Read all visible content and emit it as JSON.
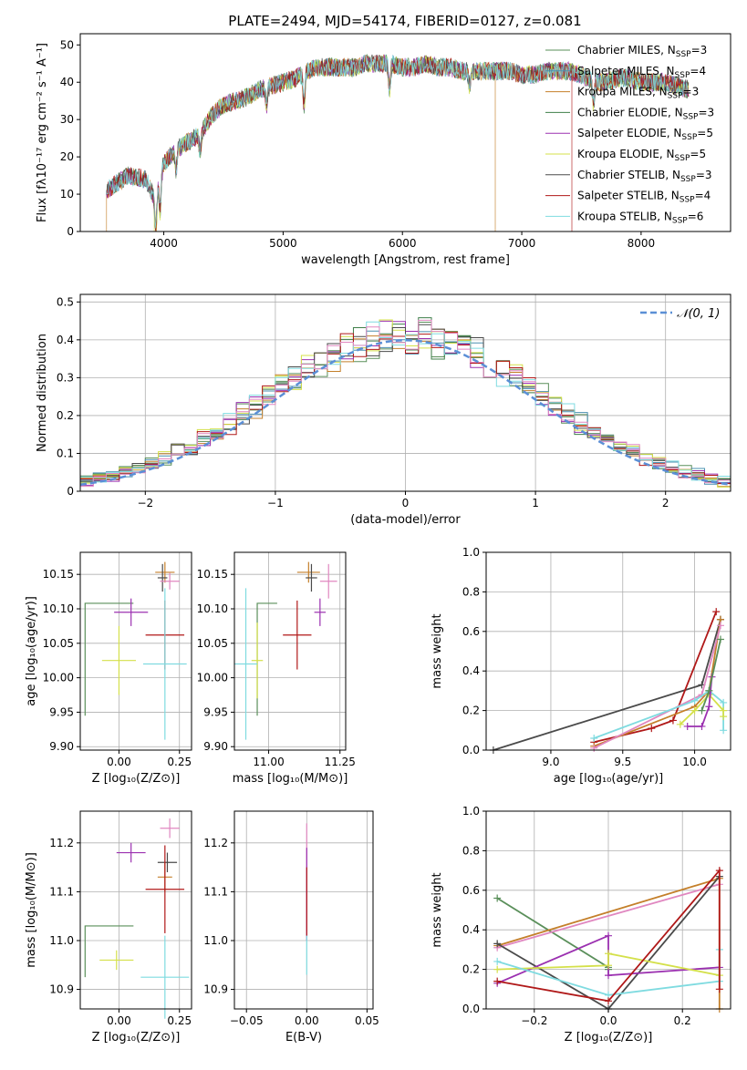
{
  "chart_data": [
    {
      "id": "spectrum",
      "type": "line",
      "title": "PLATE=2494, MJD=54174, FIBERID=0127, z=0.081",
      "xlabel": "wavelength [Angstrom, rest frame]",
      "ylabel": "Flux [fλ10⁻¹⁷ erg cm⁻² s⁻¹ A⁻¹]",
      "xlim": [
        3300,
        8750
      ],
      "ylim": [
        0,
        53
      ],
      "x_ticks": [
        4000,
        5000,
        6000,
        7000,
        8000
      ],
      "y_ticks": [
        0,
        10,
        20,
        30,
        40,
        50
      ],
      "legend_position": "top-right",
      "series": [
        {
          "name": "Chabrier MILES, N",
          "sub": "SSP",
          "suffix": "=3",
          "color": "#5a8f5a"
        },
        {
          "name": "Salpeter MILES, N",
          "sub": "SSP",
          "suffix": "=4",
          "color": "#4a8fb0"
        },
        {
          "name": "Kroupa MILES, N",
          "sub": "SSP",
          "suffix": "=3",
          "color": "#c47f2a"
        },
        {
          "name": "Chabrier ELODIE, N",
          "sub": "SSP",
          "suffix": "=3",
          "color": "#3f7f4a"
        },
        {
          "name": "Salpeter ELODIE, N",
          "sub": "SSP",
          "suffix": "=5",
          "color": "#9b30b0"
        },
        {
          "name": "Kroupa ELODIE, N",
          "sub": "SSP",
          "suffix": "=5",
          "color": "#d4e04a"
        },
        {
          "name": "Chabrier STELIB, N",
          "sub": "SSP",
          "suffix": "=3",
          "color": "#4a4a4a"
        },
        {
          "name": "Salpeter STELIB, N",
          "sub": "SSP",
          "suffix": "=4",
          "color": "#b01818"
        },
        {
          "name": "Kroupa STELIB, N",
          "sub": "SSP",
          "suffix": "=6",
          "color": "#7fdbe0"
        }
      ],
      "spectrum_continuum": [
        [
          3520,
          11
        ],
        [
          3700,
          15
        ],
        [
          3850,
          14
        ],
        [
          3920,
          9
        ],
        [
          4000,
          18
        ],
        [
          4100,
          22
        ],
        [
          4200,
          24
        ],
        [
          4300,
          26
        ],
        [
          4400,
          31
        ],
        [
          4500,
          34
        ],
        [
          4600,
          35
        ],
        [
          4700,
          36
        ],
        [
          4800,
          38
        ],
        [
          4900,
          39
        ],
        [
          5000,
          40
        ],
        [
          5100,
          41
        ],
        [
          5200,
          43
        ],
        [
          5300,
          44
        ],
        [
          5400,
          44
        ],
        [
          5500,
          44
        ],
        [
          5600,
          44
        ],
        [
          5700,
          45
        ],
        [
          5800,
          45
        ],
        [
          5900,
          45
        ],
        [
          6000,
          44
        ],
        [
          6100,
          44
        ],
        [
          6200,
          45
        ],
        [
          6300,
          44
        ],
        [
          6400,
          44
        ],
        [
          6500,
          43
        ],
        [
          6600,
          43
        ],
        [
          6700,
          43
        ],
        [
          6800,
          43
        ],
        [
          6900,
          43
        ],
        [
          7000,
          42
        ],
        [
          7100,
          42
        ],
        [
          7200,
          43
        ],
        [
          7300,
          43
        ],
        [
          7400,
          43
        ],
        [
          7500,
          42
        ],
        [
          7600,
          40
        ],
        [
          7700,
          40
        ],
        [
          7800,
          41
        ],
        [
          7900,
          41
        ],
        [
          8000,
          40
        ],
        [
          8100,
          40
        ],
        [
          8200,
          40
        ],
        [
          8300,
          39
        ],
        [
          8400,
          38
        ]
      ],
      "dips": [
        [
          3934,
          10
        ],
        [
          3969,
          9
        ],
        [
          4102,
          6
        ],
        [
          4304,
          5
        ],
        [
          4861,
          5
        ],
        [
          5175,
          9
        ],
        [
          5892,
          7
        ],
        [
          6563,
          4
        ],
        [
          7600,
          6
        ]
      ]
    },
    {
      "id": "residuals",
      "type": "line",
      "xlabel": "(data-model)/error",
      "ylabel": "Normed distribution",
      "xlim": [
        -2.5,
        2.5
      ],
      "ylim": [
        0,
        0.52
      ],
      "x_ticks": [
        -2,
        -1,
        0,
        1,
        2
      ],
      "y_ticks": [
        0.0,
        0.1,
        0.2,
        0.3,
        0.4,
        0.5
      ],
      "reference_curve": {
        "name": "𝒩(0, 1)",
        "color": "#5b8fd6",
        "mean": 0,
        "sigma": 1
      },
      "legend_position": "top-right",
      "bins": {
        "start": -2.5,
        "width": 0.1,
        "count": 50
      },
      "series_colors": [
        "#5a8f5a",
        "#4a8fb0",
        "#c47f2a",
        "#3f7f4a",
        "#9b30b0",
        "#d4e04a",
        "#4a4a4a",
        "#b01818",
        "#7fdbe0",
        "#e087c0"
      ]
    },
    {
      "id": "age_vs_Z",
      "type": "scatter",
      "xlabel": "Z [log₁₀(Z/Z⊙)]",
      "ylabel": "age  [log₁₀(age/yr)]",
      "xlim": [
        -0.16,
        0.3
      ],
      "ylim": [
        9.895,
        10.182
      ],
      "x_ticks": [
        0.0,
        0.25
      ],
      "x_tick_labels": [
        "0.00",
        "0.25"
      ],
      "y_ticks": [
        9.9,
        9.95,
        10.0,
        10.05,
        10.1,
        10.15
      ],
      "y_tick_labels": [
        "9.90",
        "9.95",
        "10.00",
        "10.05",
        "10.10",
        "10.15"
      ],
      "points": [
        {
          "x": 0.19,
          "y": 10.153,
          "xerr": 0.04,
          "yerr": 0.015,
          "color": "#c47f2a"
        },
        {
          "x": 0.18,
          "y": 10.145,
          "xerr": 0.02,
          "yerr": 0.02,
          "color": "#4a4a4a"
        },
        {
          "x": 0.21,
          "y": 10.14,
          "xerr": 0.04,
          "yerr": 0.012,
          "color": "#e087c0"
        },
        {
          "x": 0.05,
          "y": 10.095,
          "xerr": 0.07,
          "yerr": 0.02,
          "color": "#9b30b0"
        },
        {
          "x": 0.19,
          "y": 10.062,
          "xerr": 0.08,
          "yerr": 0.05,
          "color": "#b01818"
        },
        {
          "x": 0.0,
          "y": 10.025,
          "xerr": 0.07,
          "yerr": 0.05,
          "color": "#d4e04a"
        },
        {
          "x": 0.19,
          "y": 10.02,
          "xerr": 0.09,
          "yerr": 0.11,
          "color": "#7fdbe0"
        }
      ],
      "steps": [
        {
          "x0": -0.14,
          "x1": 0.06,
          "y0": 9.945,
          "y1": 10.108,
          "color": "#5a8f5a"
        }
      ]
    },
    {
      "id": "age_vs_mass",
      "type": "scatter",
      "xlabel": "mass [log₁₀(M/M⊙)]",
      "ylabel": "",
      "xlim": [
        10.88,
        11.27
      ],
      "ylim": [
        9.895,
        10.182
      ],
      "x_ticks": [
        11.0,
        11.25
      ],
      "x_tick_labels": [
        "11.00",
        "11.25"
      ],
      "y_ticks": [
        9.9,
        9.95,
        10.0,
        10.05,
        10.1,
        10.15
      ],
      "y_tick_labels": [
        "9.90",
        "9.95",
        "10.00",
        "10.05",
        "10.10",
        "10.15"
      ],
      "points": [
        {
          "x": 11.14,
          "y": 10.153,
          "xerr": 0.04,
          "yerr": 0.015,
          "color": "#c47f2a"
        },
        {
          "x": 11.15,
          "y": 10.145,
          "xerr": 0.02,
          "yerr": 0.02,
          "color": "#4a4a4a"
        },
        {
          "x": 11.21,
          "y": 10.14,
          "xerr": 0.03,
          "yerr": 0.025,
          "color": "#e087c0"
        },
        {
          "x": 11.18,
          "y": 10.095,
          "xerr": 0.02,
          "yerr": 0.02,
          "color": "#9b30b0"
        },
        {
          "x": 11.1,
          "y": 10.062,
          "xerr": 0.05,
          "yerr": 0.05,
          "color": "#b01818"
        },
        {
          "x": 10.96,
          "y": 10.025,
          "xerr": 0.02,
          "yerr": 0.055,
          "color": "#d4e04a"
        },
        {
          "x": 10.92,
          "y": 10.02,
          "xerr": 0.04,
          "yerr": 0.11,
          "color": "#7fdbe0"
        }
      ],
      "steps": [
        {
          "x0": 10.96,
          "x1": 11.03,
          "y0": 9.945,
          "y1": 10.108,
          "color": "#5a8f5a"
        }
      ]
    },
    {
      "id": "massweight_vs_age",
      "type": "line",
      "xlabel": "age  [log₁₀(age/yr)]",
      "ylabel": "mass weight",
      "xlim": [
        8.55,
        10.25
      ],
      "ylim": [
        0,
        1.0
      ],
      "x_ticks": [
        9.0,
        9.5,
        10.0
      ],
      "x_tick_labels": [
        "9.0",
        "9.5",
        "10.0"
      ],
      "y_ticks": [
        0.0,
        0.2,
        0.4,
        0.6,
        0.8,
        1.0
      ],
      "y_tick_labels": [
        "0.0",
        "0.2",
        "0.4",
        "0.6",
        "0.8",
        "1.0"
      ],
      "series": [
        {
          "color": "#4a4a4a",
          "points": [
            [
              8.6,
              0.0
            ],
            [
              10.05,
              0.33
            ],
            [
              10.18,
              0.66
            ],
            [
              10.18,
              0.66
            ]
          ]
        },
        {
          "color": "#b01818",
          "points": [
            [
              9.3,
              0.04
            ],
            [
              9.7,
              0.11
            ],
            [
              9.85,
              0.15
            ],
            [
              10.15,
              0.7
            ]
          ]
        },
        {
          "color": "#c47f2a",
          "points": [
            [
              9.3,
              0.02
            ],
            [
              10.0,
              0.22
            ],
            [
              10.1,
              0.3
            ],
            [
              10.18,
              0.66
            ]
          ]
        },
        {
          "color": "#e087c0",
          "points": [
            [
              9.3,
              0.01
            ],
            [
              10.05,
              0.28
            ],
            [
              10.18,
              0.63
            ]
          ]
        },
        {
          "color": "#7fdbe0",
          "points": [
            [
              9.3,
              0.06
            ],
            [
              10.0,
              0.25
            ],
            [
              10.1,
              0.3
            ],
            [
              10.2,
              0.24
            ],
            [
              10.2,
              0.1
            ]
          ]
        },
        {
          "color": "#d4e04a",
          "points": [
            [
              9.9,
              0.13
            ],
            [
              10.0,
              0.2
            ],
            [
              10.1,
              0.28
            ],
            [
              10.2,
              0.2
            ],
            [
              10.2,
              0.17
            ]
          ]
        },
        {
          "color": "#9b30b0",
          "points": [
            [
              9.95,
              0.12
            ],
            [
              10.05,
              0.12
            ],
            [
              10.1,
              0.22
            ],
            [
              10.12,
              0.37
            ]
          ]
        },
        {
          "color": "#5a8f5a",
          "points": [
            [
              10.05,
              0.2
            ],
            [
              10.1,
              0.3
            ],
            [
              10.18,
              0.56
            ]
          ]
        }
      ]
    },
    {
      "id": "mass_vs_Z",
      "type": "scatter",
      "xlabel": "Z [log₁₀(Z/Z⊙)]",
      "ylabel": "mass [log₁₀(M/M⊙)]",
      "xlim": [
        -0.16,
        0.3
      ],
      "ylim": [
        10.86,
        11.265
      ],
      "x_ticks": [
        0.0,
        0.25
      ],
      "x_tick_labels": [
        "0.00",
        "0.25"
      ],
      "y_ticks": [
        10.9,
        11.0,
        11.1,
        11.2
      ],
      "y_tick_labels": [
        "10.9",
        "11.0",
        "11.1",
        "11.2"
      ],
      "points": [
        {
          "x": 0.21,
          "y": 11.23,
          "xerr": 0.04,
          "yerr": 0.02,
          "color": "#e087c0"
        },
        {
          "x": 0.05,
          "y": 11.18,
          "xerr": 0.06,
          "yerr": 0.02,
          "color": "#9b30b0"
        },
        {
          "x": 0.2,
          "y": 11.16,
          "xerr": 0.04,
          "yerr": 0.02,
          "color": "#4a4a4a"
        },
        {
          "x": 0.19,
          "y": 11.13,
          "xerr": 0.03,
          "yerr": 0.03,
          "color": "#c47f2a"
        },
        {
          "x": 0.19,
          "y": 11.105,
          "xerr": 0.08,
          "yerr": 0.09,
          "color": "#b01818"
        },
        {
          "x": -0.01,
          "y": 10.96,
          "xerr": 0.07,
          "yerr": 0.02,
          "color": "#d4e04a"
        },
        {
          "x": 0.19,
          "y": 10.925,
          "xerr": 0.1,
          "yerr": 0.085,
          "color": "#7fdbe0"
        }
      ],
      "steps": [
        {
          "x0": -0.14,
          "x1": 0.06,
          "y0": 10.925,
          "y1": 11.03,
          "color": "#5a8f5a"
        }
      ]
    },
    {
      "id": "mass_vs_ebv",
      "type": "scatter",
      "xlabel": "E(B-V)",
      "ylabel": "",
      "xlim": [
        -0.06,
        0.055
      ],
      "ylim": [
        10.86,
        11.265
      ],
      "x_ticks": [
        -0.05,
        0.0,
        0.05
      ],
      "x_tick_labels": [
        "−0.05",
        "0.00",
        "0.05"
      ],
      "y_ticks": [
        10.9,
        11.0,
        11.1,
        11.2
      ],
      "y_tick_labels": [
        "10.9",
        "11.0",
        "11.1",
        "11.2"
      ],
      "vlines": [
        {
          "x": 0.0,
          "y0": 11.02,
          "y1": 11.24,
          "color": "#e087c0"
        },
        {
          "x": 0.0,
          "y0": 11.0,
          "y1": 11.19,
          "color": "#9b30b0"
        },
        {
          "x": 0.0,
          "y0": 11.01,
          "y1": 11.15,
          "color": "#b01818"
        },
        {
          "x": 0.0,
          "y0": 10.93,
          "y1": 11.01,
          "color": "#7fdbe0"
        }
      ]
    },
    {
      "id": "massweight_vs_Z",
      "type": "line",
      "xlabel": "Z [log₁₀(Z/Z⊙)]",
      "ylabel": "mass weight",
      "xlim": [
        -0.33,
        0.33
      ],
      "ylim": [
        0,
        1.0
      ],
      "x_ticks": [
        -0.2,
        0.0,
        0.2
      ],
      "x_tick_labels": [
        "−0.2",
        "0.0",
        "0.2"
      ],
      "y_ticks": [
        0.0,
        0.2,
        0.4,
        0.6,
        0.8,
        1.0
      ],
      "y_tick_labels": [
        "0.0",
        "0.2",
        "0.4",
        "0.6",
        "0.8",
        "1.0"
      ],
      "series": [
        {
          "color": "#5a8f5a",
          "points": [
            [
              -0.3,
              0.56
            ],
            [
              0.0,
              0.21
            ],
            [
              0.0,
              0.2
            ]
          ]
        },
        {
          "color": "#c47f2a",
          "points": [
            [
              -0.3,
              0.32
            ],
            [
              0.3,
              0.66
            ],
            [
              0.3,
              0.0
            ]
          ]
        },
        {
          "color": "#e087c0",
          "points": [
            [
              -0.3,
              0.31
            ],
            [
              0.3,
              0.63
            ]
          ]
        },
        {
          "color": "#4a4a4a",
          "points": [
            [
              -0.3,
              0.33
            ],
            [
              0.0,
              0.0
            ],
            [
              0.3,
              0.67
            ]
          ]
        },
        {
          "color": "#9b30b0",
          "points": [
            [
              -0.3,
              0.13
            ],
            [
              0.0,
              0.37
            ],
            [
              0.0,
              0.17
            ],
            [
              0.3,
              0.21
            ]
          ]
        },
        {
          "color": "#d4e04a",
          "points": [
            [
              -0.3,
              0.2
            ],
            [
              0.0,
              0.22
            ],
            [
              0.0,
              0.28
            ],
            [
              0.3,
              0.17
            ]
          ]
        },
        {
          "color": "#7fdbe0",
          "points": [
            [
              -0.3,
              0.24
            ],
            [
              0.0,
              0.07
            ],
            [
              0.3,
              0.14
            ],
            [
              0.3,
              0.3
            ]
          ]
        },
        {
          "color": "#b01818",
          "points": [
            [
              -0.3,
              0.14
            ],
            [
              0.0,
              0.04
            ],
            [
              0.3,
              0.7
            ],
            [
              0.3,
              0.1
            ]
          ]
        }
      ]
    }
  ]
}
